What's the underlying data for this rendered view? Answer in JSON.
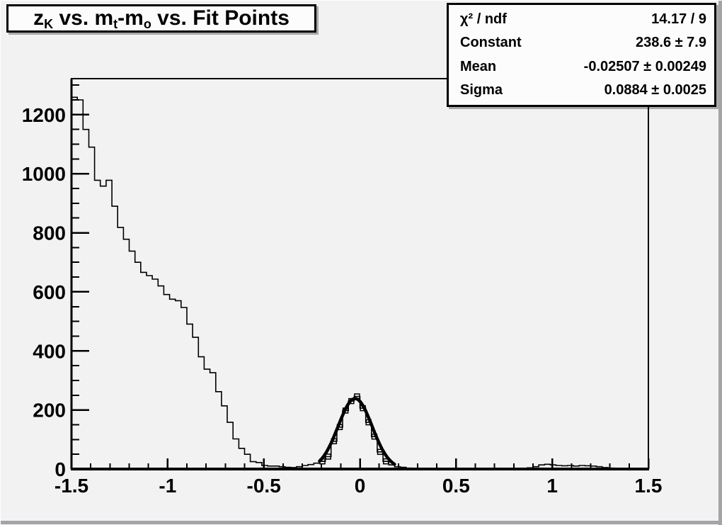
{
  "window": {
    "background": "#f2f2f2",
    "border_color": "#a2a4a8",
    "line_color": "#000000",
    "pave_background": "#fcfcfc"
  },
  "title": {
    "plain": "z_K vs. m_t-m_o vs. Fit Points",
    "segments": [
      {
        "text": "z",
        "sub": false
      },
      {
        "text": "K",
        "sub": true
      },
      {
        "text": " vs. m",
        "sub": false
      },
      {
        "text": "t",
        "sub": true
      },
      {
        "text": "-m",
        "sub": false
      },
      {
        "text": "o",
        "sub": true
      },
      {
        "text": " vs. Fit Points",
        "sub": false
      }
    ]
  },
  "stats": {
    "rows": [
      {
        "label": "χ² / ndf",
        "value": "14.17 / 9"
      },
      {
        "label": "Constant",
        "value": "238.6 ± 7.9"
      },
      {
        "label": "Mean",
        "value": "-0.02507 ± 0.00249"
      },
      {
        "label": "Sigma",
        "value": "0.0884 ± 0.0025"
      }
    ]
  },
  "chart_data": {
    "type": "bar",
    "style": "step-histogram",
    "title": "z_K vs. m_t-m_o vs. Fit Points",
    "xlabel": "",
    "ylabel": "",
    "xlim": [
      -1.5,
      1.5
    ],
    "ylim": [
      0,
      1322
    ],
    "grid": false,
    "bin_start": -1.5,
    "bin_width": 0.03,
    "n_bins": 100,
    "counts": [
      1259,
      1250,
      1150,
      1090,
      978,
      958,
      978,
      890,
      818,
      778,
      738,
      700,
      666,
      655,
      643,
      620,
      591,
      575,
      570,
      547,
      491,
      446,
      380,
      338,
      326,
      262,
      214,
      158,
      102,
      70,
      50,
      25,
      22,
      12,
      10,
      10,
      8,
      6,
      5,
      8,
      12,
      15,
      20,
      26,
      42,
      94,
      142,
      198,
      230,
      246,
      206,
      158,
      110,
      58,
      26,
      14,
      8,
      6,
      3,
      2,
      1,
      0,
      0,
      0,
      0,
      0,
      0,
      0,
      0,
      0,
      0,
      0,
      0,
      0,
      0,
      0,
      0,
      0,
      2,
      4,
      8,
      14,
      16,
      14,
      12,
      11,
      12,
      10,
      12,
      11,
      10,
      8,
      5,
      3,
      1,
      0,
      0,
      0,
      0,
      0
    ],
    "x_ticks": {
      "major": [
        -1.5,
        -1,
        -0.5,
        0,
        0.5,
        1,
        1.5
      ],
      "labels": [
        "-1.5",
        "-1",
        "-0.5",
        "0",
        "0.5",
        "1",
        "1.5"
      ],
      "minor_step": 0.1
    },
    "y_ticks": {
      "major": [
        0,
        200,
        400,
        600,
        800,
        1000,
        1200
      ],
      "labels": [
        "0",
        "200",
        "400",
        "600",
        "800",
        "1000",
        "1200"
      ],
      "minor_step": 50,
      "minor_max": 1300
    },
    "fit": {
      "model": "gaussian",
      "constant": 238.6,
      "mean": -0.02507,
      "sigma": 0.0884,
      "chi2": 14.17,
      "ndf": 9,
      "draw_range": [
        -0.21,
        0.18
      ],
      "color": "#000000",
      "line_width": 4.5
    },
    "fit_point_bins_1indexed": [
      44,
      45,
      46,
      47,
      48,
      49,
      50,
      51,
      52,
      53,
      54,
      55
    ],
    "marker": {
      "shape": "open-square",
      "size": 7
    },
    "colors": {
      "line": "#000000",
      "background": "#f2f2f2"
    },
    "legend": null
  }
}
